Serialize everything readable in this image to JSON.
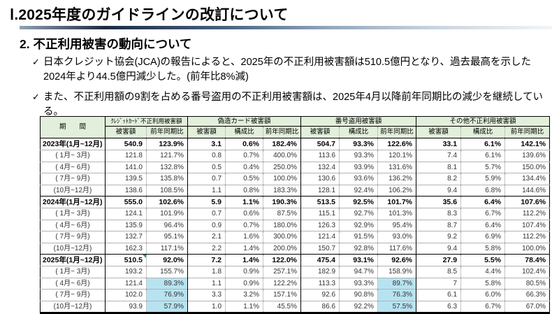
{
  "title": "Ⅰ.2025年度のガイドラインの改訂について",
  "section_heading": "2. 不正利用被害の動向について",
  "bullets": {
    "check": "✓",
    "items": [
      "日本クレジット協会(JCA)の報告によると、2025年の不正利用被害額は510.5億円となり、過去最高を示した2024年より44.5億円減少した。(前年比8%減)",
      "また、不正利用額の9割を占める番号盗用の不正利用被害額は、2025年4月以降前年同期比の減少を継続している。"
    ]
  },
  "colors": {
    "header_green": "#e2efda",
    "highlight_blue": "#b7e3f1",
    "note_green": "#21a038",
    "bar_gradient": [
      "#93a2b2",
      "#1c2b40",
      "#46607e",
      "#93a7ba",
      "#c9d4de",
      "#f2f5f8"
    ]
  },
  "table": {
    "period_header": "期　　間",
    "groups": [
      {
        "label": "ｸﾚｼﾞｯﾄｶｰﾄﾞ不正利用被害額",
        "cols": [
          "被害額",
          "前年同期比"
        ]
      },
      {
        "label": "偽造カード被害額",
        "cols": [
          "被害額",
          "構成比",
          "前年同期比"
        ]
      },
      {
        "label": "番号盗用被害額",
        "cols": [
          "被害額",
          "構成比",
          "前年同期比"
        ]
      },
      {
        "label": "その他不正利用被害額",
        "cols": [
          "被害額",
          "構成比",
          "前年同期比"
        ]
      }
    ],
    "rows": [
      {
        "type": "year",
        "label": "2023年(1月~12月)",
        "values": [
          "540.9",
          "123.9%",
          "3.1",
          "0.6%",
          "182.4%",
          "504.7",
          "93.3%",
          "122.6%",
          "33.1",
          "6.1%",
          "142.1%"
        ]
      },
      {
        "type": "quarter",
        "label": "( 1月~ 3月)",
        "values": [
          "121.8",
          "121.7%",
          "0.8",
          "0.7%",
          "400.0%",
          "113.6",
          "93.3%",
          "120.1%",
          "7.4",
          "6.1%",
          "139.6%"
        ]
      },
      {
        "type": "quarter",
        "label": "( 4月~ 6月)",
        "values": [
          "141.0",
          "132.8%",
          "0.5",
          "0.4%",
          "250.0%",
          "132.4",
          "93.9%",
          "131.6%",
          "8.1",
          "5.7%",
          "150.0%"
        ]
      },
      {
        "type": "quarter",
        "label": "( 7月~ 9月)",
        "values": [
          "139.5",
          "135.8%",
          "0.7",
          "0.5%",
          "100.0%",
          "130.6",
          "93.6%",
          "136.2%",
          "8.2",
          "5.9%",
          "134.4%"
        ]
      },
      {
        "type": "quarter",
        "label": "(10月~12月)",
        "values": [
          "138.6",
          "108.5%",
          "1.1",
          "0.8%",
          "183.3%",
          "128.1",
          "92.4%",
          "106.2%",
          "9.4",
          "6.8%",
          "144.6%"
        ]
      },
      {
        "type": "year",
        "label": "2024年(1月~12月)",
        "values": [
          "555.0",
          "102.6%",
          "5.9",
          "1.1%",
          "190.3%",
          "513.5",
          "92.5%",
          "101.7%",
          "35.6",
          "6.4%",
          "107.6%"
        ]
      },
      {
        "type": "quarter",
        "label": "( 1月~ 3月)",
        "values": [
          "124.1",
          "101.9%",
          "0.7",
          "0.6%",
          "87.5%",
          "115.1",
          "92.7%",
          "101.3%",
          "8.3",
          "6.7%",
          "112.2%"
        ]
      },
      {
        "type": "quarter",
        "label": "( 4月~ 6月)",
        "values": [
          "135.9",
          "96.4%",
          "0.9",
          "0.7%",
          "180.0%",
          "126.3",
          "92.9%",
          "95.4%",
          "8.7",
          "6.4%",
          "107.4%"
        ]
      },
      {
        "type": "quarter",
        "label": "( 7月~ 9月)",
        "values": [
          "132.7",
          "95.1%",
          "2.1",
          "1.6%",
          "300.0%",
          "121.4",
          "91.5%",
          "93.0%",
          "9.2",
          "6.9%",
          "112.2%"
        ]
      },
      {
        "type": "quarter",
        "label": "(10月~12月)",
        "values": [
          "162.3",
          "117.1%",
          "2.2",
          "1.4%",
          "200.0%",
          "150.7",
          "92.8%",
          "117.6%",
          "9.4",
          "5.8%",
          "100.0%"
        ]
      },
      {
        "type": "year",
        "label": "2025年(1月~12月)",
        "note_cell": 0,
        "values": [
          "510.5",
          "92.0%",
          "7.2",
          "1.4%",
          "122.0%",
          "475.4",
          "93.1%",
          "92.6%",
          "27.9",
          "5.5%",
          "78.4%"
        ]
      },
      {
        "type": "quarter",
        "label": "( 1月~ 3月)",
        "values": [
          "193.2",
          "155.7%",
          "1.8",
          "0.9%",
          "257.1%",
          "182.9",
          "94.7%",
          "158.9%",
          "8.5",
          "4.4%",
          "102.4%"
        ]
      },
      {
        "type": "quarter",
        "label": "( 4月~ 6月)",
        "highlights": [
          1,
          7
        ],
        "values": [
          "121.4",
          "89.3%",
          "1.1",
          "0.9%",
          "122.2%",
          "113.3",
          "93.3%",
          "89.7%",
          "7",
          "5.8%",
          "80.5%"
        ]
      },
      {
        "type": "quarter",
        "label": "( 7月~ 9月)",
        "highlights": [
          1,
          7
        ],
        "values": [
          "102.0",
          "76.9%",
          "3.3",
          "3.2%",
          "157.1%",
          "92.6",
          "90.8%",
          "76.3%",
          "6.1",
          "6.0%",
          "66.3%"
        ]
      },
      {
        "type": "quarter",
        "label": "(10月~12月)",
        "highlights": [
          1,
          7
        ],
        "values": [
          "93.9",
          "57.9%",
          "1.0",
          "1.1%",
          "45.5%",
          "86.6",
          "92.2%",
          "57.5%",
          "6.3",
          "6.7%",
          "67.0%"
        ]
      }
    ]
  }
}
